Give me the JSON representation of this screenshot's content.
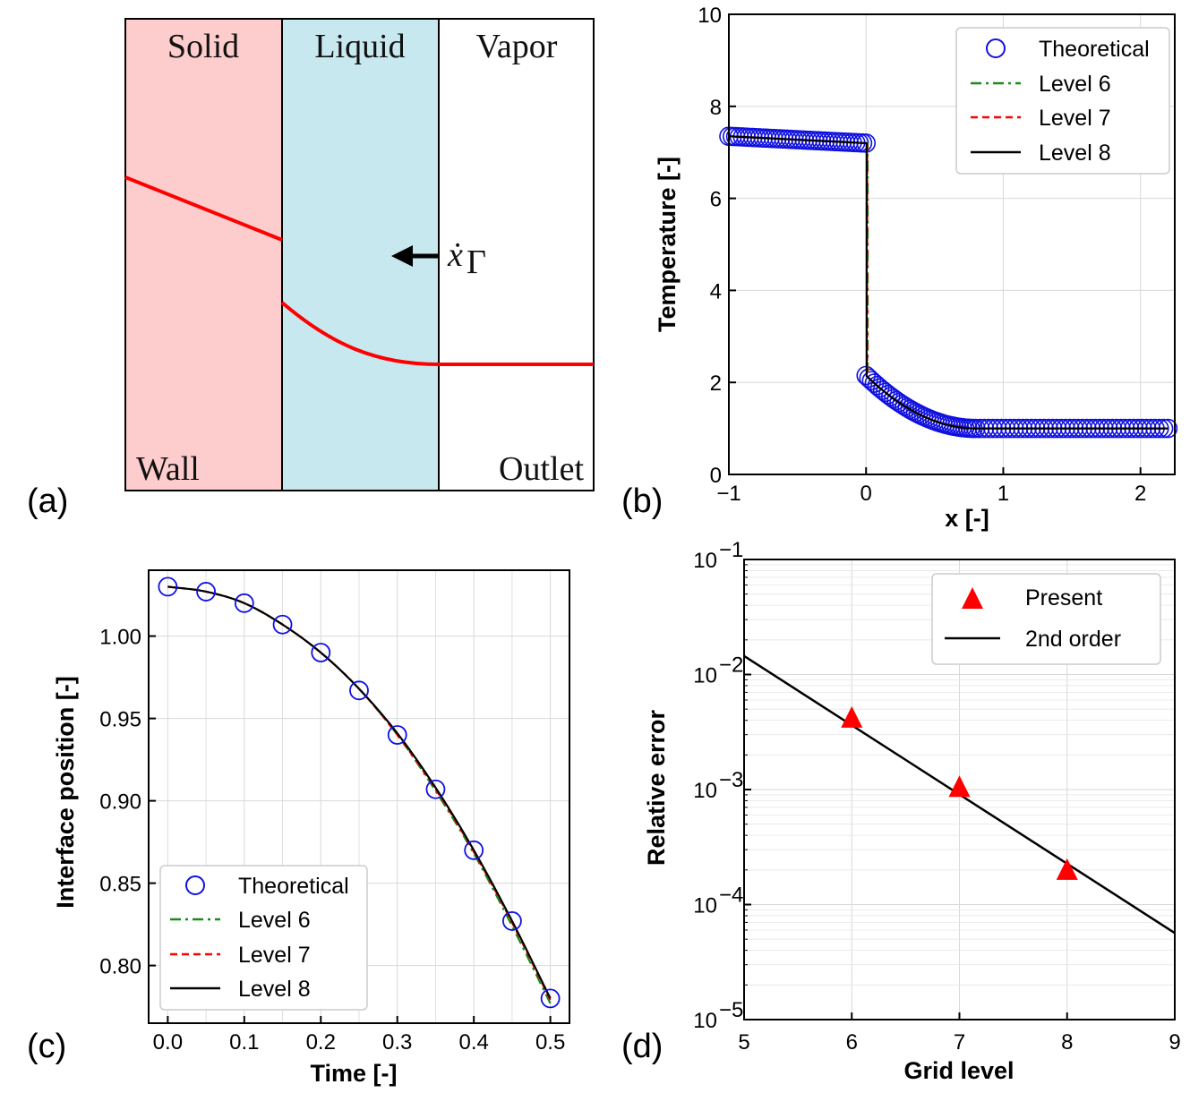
{
  "panel_a": {
    "label": "(a)",
    "regions": {
      "solid": "Solid",
      "liquid": "Liquid",
      "vapor": "Vapor"
    },
    "bottom_labels": {
      "wall": "Wall",
      "outlet": "Outlet"
    },
    "arrow_label": "ẋ",
    "arrow_subscript": "Γ",
    "colors": {
      "solid": "#fdcdcd",
      "liquid": "#c8e8f0",
      "vapor": "#ffffff",
      "profile": "#ff0000"
    }
  },
  "chart_data": [
    {
      "id": "b",
      "type": "line",
      "panel_label": "(b)",
      "xlabel": "x [-]",
      "ylabel": "Temperature [-]",
      "xlim": [
        -1,
        2.25
      ],
      "ylim": [
        0,
        10
      ],
      "xticks": [
        "−1",
        "0",
        "1",
        "2"
      ],
      "xtick_values": [
        -1,
        0,
        1,
        2
      ],
      "yticks": [
        "0",
        "2",
        "4",
        "6",
        "8",
        "10"
      ],
      "ytick_values": [
        0,
        2,
        4,
        6,
        8,
        10
      ],
      "grid": true,
      "legend": "top-right",
      "legend_entries": [
        "Theoretical",
        "Level 6",
        "Level 7",
        "Level 8"
      ],
      "solid_profile": {
        "x": [
          -1,
          0
        ],
        "y": [
          7.35,
          7.2
        ]
      },
      "liquid_profile": {
        "x0": 0,
        "x1": 0.8,
        "y0": 2.15,
        "y1": 1.0
      },
      "vapor_profile": {
        "x": [
          0.8,
          2.2
        ],
        "y": [
          1.0,
          1.0
        ]
      }
    },
    {
      "id": "c",
      "type": "line",
      "panel_label": "(c)",
      "xlabel": "Time [-]",
      "ylabel": "Interface position [-]",
      "xlim": [
        -0.025,
        0.525
      ],
      "ylim": [
        0.765,
        1.04
      ],
      "xticks": [
        "0.0",
        "0.1",
        "0.2",
        "0.3",
        "0.4",
        "0.5"
      ],
      "xtick_values": [
        0,
        0.1,
        0.2,
        0.3,
        0.4,
        0.5
      ],
      "yticks": [
        "0.80",
        "0.85",
        "0.90",
        "0.95",
        "1.00"
      ],
      "ytick_values": [
        0.8,
        0.85,
        0.9,
        0.95,
        1.0
      ],
      "grid": true,
      "legend": "bottom-left",
      "legend_entries": [
        "Theoretical",
        "Level 6",
        "Level 7",
        "Level 8"
      ],
      "theoretical": {
        "x": [
          0.0,
          0.05,
          0.1,
          0.15,
          0.2,
          0.25,
          0.3,
          0.35,
          0.4,
          0.45,
          0.5
        ],
        "y": [
          1.03,
          1.027,
          1.02,
          1.007,
          0.99,
          0.967,
          0.94,
          0.907,
          0.87,
          0.827,
          0.78
        ]
      },
      "series": [
        {
          "name": "Level 6",
          "x": [
            0.0,
            0.05,
            0.1,
            0.15,
            0.2,
            0.25,
            0.3,
            0.35,
            0.4,
            0.45,
            0.5
          ],
          "y": [
            1.03,
            1.027,
            1.02,
            1.007,
            0.99,
            0.968,
            0.94,
            0.906,
            0.868,
            0.824,
            0.777
          ]
        },
        {
          "name": "Level 7",
          "x": [
            0.0,
            0.05,
            0.1,
            0.15,
            0.2,
            0.25,
            0.3,
            0.35,
            0.4,
            0.45,
            0.5
          ],
          "y": [
            1.03,
            1.027,
            1.02,
            1.007,
            0.99,
            0.968,
            0.94,
            0.907,
            0.869,
            0.826,
            0.779
          ]
        },
        {
          "name": "Level 8",
          "x": [
            0.0,
            0.05,
            0.1,
            0.15,
            0.2,
            0.25,
            0.3,
            0.35,
            0.4,
            0.45,
            0.5
          ],
          "y": [
            1.03,
            1.027,
            1.02,
            1.007,
            0.99,
            0.968,
            0.941,
            0.908,
            0.87,
            0.827,
            0.78
          ]
        }
      ]
    },
    {
      "id": "d",
      "type": "scatter",
      "panel_label": "(d)",
      "xlabel": "Grid level",
      "ylabel": "Relative error",
      "xlim": [
        5,
        9
      ],
      "ylim_log10": [
        -5,
        -1
      ],
      "xticks": [
        "5",
        "6",
        "7",
        "8",
        "9"
      ],
      "xtick_values": [
        5,
        6,
        7,
        8,
        9
      ],
      "yticks_base": "10",
      "yticks_exp": [
        "−5",
        "−4",
        "−3",
        "−2",
        "−1"
      ],
      "ytick_values": [
        -5,
        -4,
        -3,
        -2,
        -1
      ],
      "grid": true,
      "legend": "top-right",
      "legend_entries": [
        "Present",
        "2nd order"
      ],
      "present": {
        "x": [
          6,
          7,
          8
        ],
        "y": [
          0.0042,
          0.00105,
          0.0002
        ]
      },
      "second_order": {
        "x": [
          5,
          9
        ],
        "y": [
          0.0145,
          5.66e-05
        ]
      }
    }
  ],
  "colors": {
    "theoretical": "#1010e0",
    "level6": "#1a8a1a",
    "level7": "#ff0000",
    "level8": "#000000",
    "present": "#ff0000",
    "grid": "#d8d8d8"
  }
}
